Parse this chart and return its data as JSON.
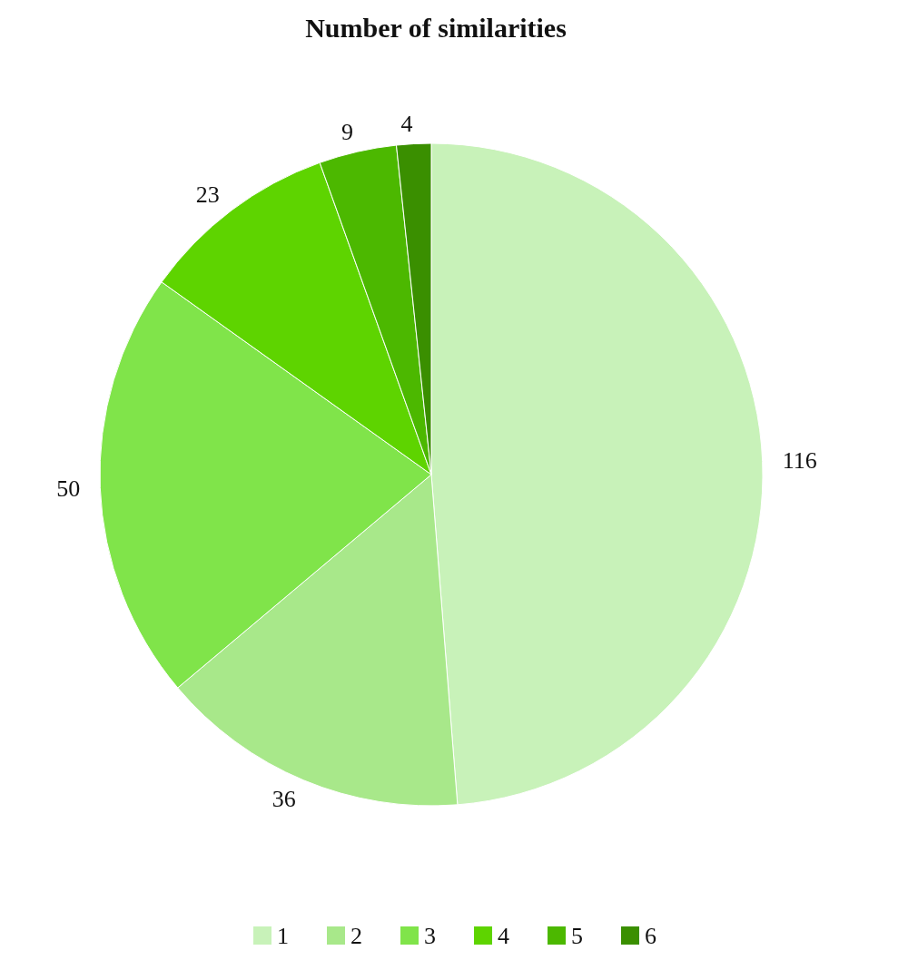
{
  "chart_data": {
    "type": "pie",
    "title": "Number of similarities",
    "categories": [
      "1",
      "2",
      "3",
      "4",
      "5",
      "6"
    ],
    "values": [
      116,
      36,
      50,
      23,
      9,
      4
    ],
    "colors": [
      "#c8f2b9",
      "#a8e88a",
      "#80e44a",
      "#5ed400",
      "#4cb800",
      "#3a8f00"
    ],
    "data_labels": true,
    "legend": "bottom"
  }
}
